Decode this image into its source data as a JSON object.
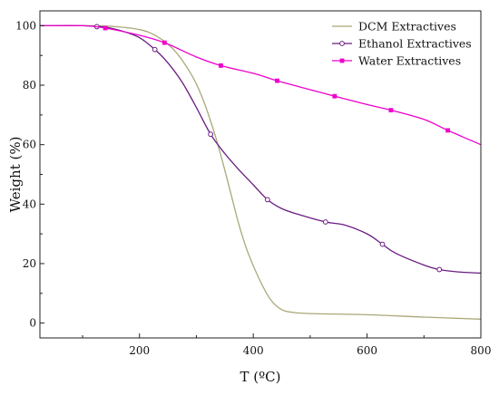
{
  "chart_data": {
    "type": "line",
    "title": "",
    "xlabel": "T (ºC)",
    "ylabel": "Weight (%)",
    "xlim": [
      25,
      800
    ],
    "ylim": [
      -5,
      105
    ],
    "xticks": [
      200,
      400,
      600,
      800
    ],
    "yticks": [
      0,
      20,
      40,
      60,
      80,
      100
    ],
    "grid": false,
    "legend_position": "top-right",
    "series": [
      {
        "name": "DCM Extractives",
        "color": "#aaa878",
        "marker": "none",
        "x": [
          25,
          100,
          150,
          200,
          230,
          260,
          290,
          310,
          330,
          345,
          360,
          375,
          390,
          410,
          430,
          450,
          470,
          500,
          600,
          700,
          800
        ],
        "y": [
          100,
          100,
          99.8,
          98.7,
          96.5,
          92,
          84,
          76,
          65,
          55,
          44,
          33,
          24,
          15,
          8,
          4.5,
          3.6,
          3.2,
          2.8,
          2.0,
          1.3
        ]
      },
      {
        "name": "Ethanol Extractives",
        "color": "#6a1c82",
        "marker": "open-circle",
        "marker_x": [
          125,
          227,
          325,
          425,
          527,
          627,
          727
        ],
        "x": [
          25,
          100,
          140,
          170,
          200,
          227,
          250,
          275,
          300,
          325,
          350,
          375,
          400,
          425,
          450,
          480,
          527,
          560,
          600,
          627,
          650,
          700,
          727,
          760,
          800
        ],
        "y": [
          100,
          100,
          99.5,
          98.2,
          96,
          92,
          87.5,
          81,
          72.5,
          63.5,
          57,
          51.5,
          46.5,
          41.5,
          38.5,
          36.5,
          34,
          33,
          30,
          26.5,
          23.5,
          19.5,
          18,
          17.2,
          16.8
        ]
      },
      {
        "name": "Water Extractives",
        "color": "#ee00cc",
        "marker": "filled-square",
        "marker_x": [
          140,
          244,
          343,
          442,
          543,
          642,
          742
        ],
        "x": [
          25,
          100,
          140,
          200,
          244,
          300,
          343,
          400,
          442,
          500,
          543,
          600,
          642,
          700,
          742,
          800
        ],
        "y": [
          100,
          100,
          99.2,
          96.8,
          94.3,
          89.5,
          86.6,
          84,
          81.5,
          78.5,
          76.3,
          73.5,
          71.6,
          68.5,
          64.8,
          60
        ]
      }
    ]
  }
}
